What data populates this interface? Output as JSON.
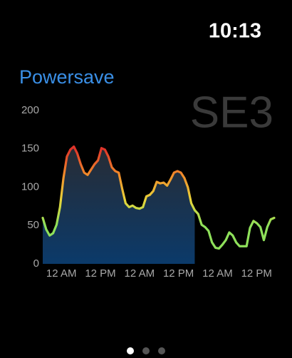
{
  "status": {
    "time": "10:13"
  },
  "badge": "SE3",
  "chart_data": {
    "type": "line",
    "title": "Powersave",
    "x": [
      0,
      1,
      2,
      3,
      4,
      5,
      6,
      7,
      8,
      9,
      10,
      11,
      12,
      13,
      14,
      15,
      16,
      17,
      18,
      19,
      20,
      21,
      22,
      23,
      24,
      25,
      26,
      27,
      28,
      29,
      30,
      31,
      32,
      33,
      34,
      35,
      36,
      37,
      38,
      39,
      40,
      41,
      42,
      43,
      44,
      45,
      46,
      47,
      48,
      49,
      50,
      51,
      52,
      53,
      54,
      55,
      56,
      57,
      58,
      59,
      60,
      61,
      62,
      63,
      64,
      65,
      66,
      67
    ],
    "values": [
      60,
      45,
      37,
      40,
      51,
      74,
      112,
      140,
      149,
      153,
      144,
      130,
      119,
      116,
      123,
      130,
      135,
      151,
      149,
      140,
      126,
      121,
      119,
      98,
      79,
      74,
      76,
      73,
      72,
      74,
      88,
      90,
      95,
      107,
      105,
      106,
      102,
      110,
      119,
      121,
      119,
      112,
      100,
      79,
      70,
      65,
      51,
      48,
      43,
      28,
      21,
      20,
      25,
      31,
      41,
      37,
      28,
      23,
      23,
      23,
      47,
      56,
      53,
      48,
      31,
      48,
      58,
      60
    ],
    "area_end": 44,
    "line_colors": [
      "#e0342a",
      "#f08a2a",
      "#e8d43a",
      "#8ee05a"
    ],
    "area_colors": [
      "#2a2b30",
      "#0b3a6a"
    ],
    "xlim": [
      0,
      67
    ],
    "xticks": [
      {
        "value": 5.4,
        "label": "12 AM"
      },
      {
        "value": 16.7,
        "label": "12 PM"
      },
      {
        "value": 28,
        "label": "12 AM"
      },
      {
        "value": 39.3,
        "label": "12 PM"
      },
      {
        "value": 50.6,
        "label": "12 AM"
      },
      {
        "value": 61.9,
        "label": "12 PM"
      }
    ],
    "ylim": [
      0,
      200
    ],
    "yticks": [
      0,
      50,
      100,
      150,
      200
    ]
  }
}
